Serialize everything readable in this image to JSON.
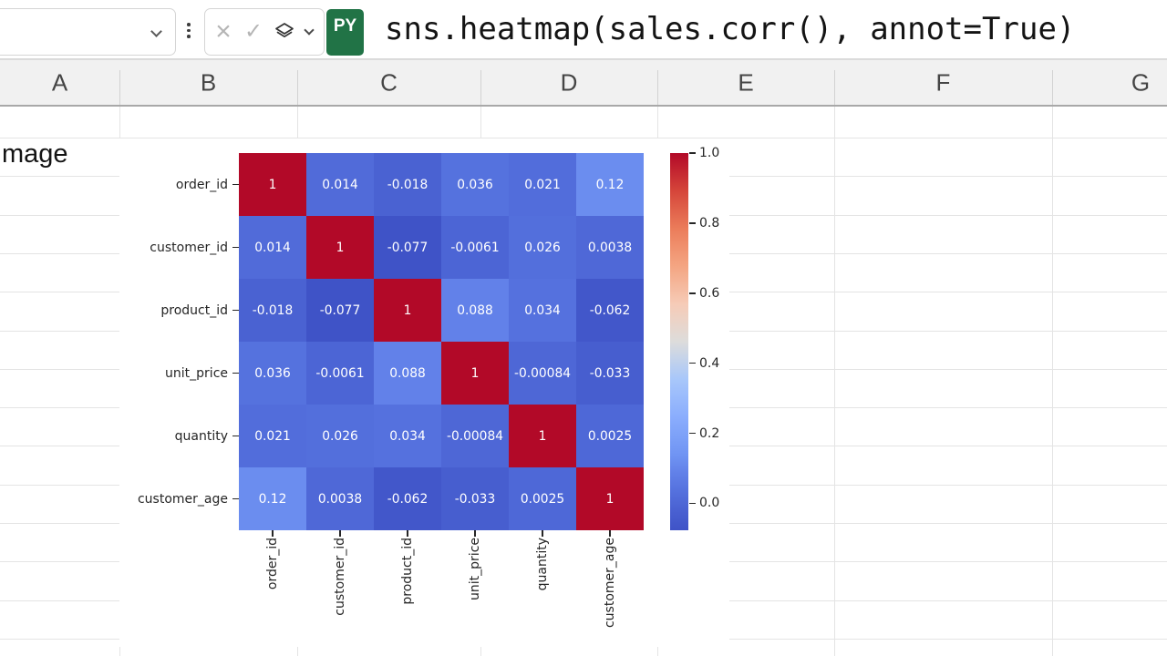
{
  "formula_bar": {
    "name_box_value": "",
    "cancel_glyph": "×",
    "confirm_glyph": "✓",
    "language_badge": "PY",
    "formula": "sns.heatmap(sales.corr(), annot=True)"
  },
  "spreadsheet": {
    "columns": [
      "A",
      "B",
      "C",
      "D",
      "E",
      "F",
      "G"
    ],
    "cell_text": "mage"
  },
  "chart_data": {
    "type": "heatmap",
    "title": "",
    "x_labels": [
      "order_id",
      "customer_id",
      "product_id",
      "unit_price",
      "quantity",
      "customer_age"
    ],
    "y_labels": [
      "order_id",
      "customer_id",
      "product_id",
      "unit_price",
      "quantity",
      "customer_age"
    ],
    "matrix": [
      [
        "1",
        "0.014",
        "-0.018",
        "0.036",
        "0.021",
        "0.12"
      ],
      [
        "0.014",
        "1",
        "-0.077",
        "-0.0061",
        "0.026",
        "0.0038"
      ],
      [
        "-0.018",
        "-0.077",
        "1",
        "0.088",
        "0.034",
        "-0.062"
      ],
      [
        "0.036",
        "-0.0061",
        "0.088",
        "1",
        "-0.00084",
        "-0.033"
      ],
      [
        "0.021",
        "0.026",
        "0.034",
        "-0.00084",
        "1",
        "0.0025"
      ],
      [
        "0.12",
        "0.0038",
        "-0.062",
        "-0.033",
        "0.0025",
        "1"
      ]
    ],
    "annot": true,
    "colormap": "coolwarm",
    "vmin": -0.077,
    "vmax": 1.0,
    "colorbar_ticks": [
      "1.0",
      "0.8",
      "0.6",
      "0.4",
      "0.2",
      "0.0"
    ],
    "colorbar_position": "right"
  },
  "colors": {
    "badge_green": "#217346",
    "heatmap_max": "#b20928",
    "heatmap_min": "#3f53c7",
    "annotation_text": "#ffffff"
  }
}
